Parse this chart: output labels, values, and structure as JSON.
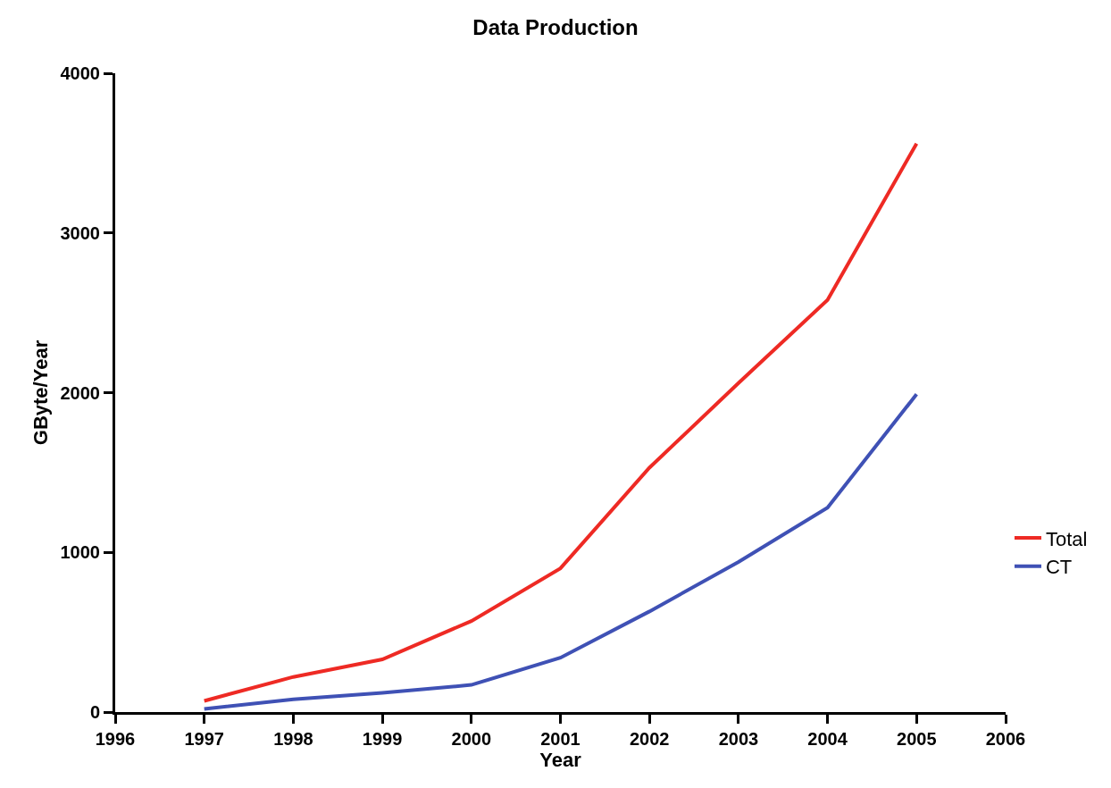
{
  "chart_data": {
    "type": "line",
    "title": "Data Production",
    "xlabel": "Year",
    "ylabel": "GByte/Year",
    "x": [
      1997,
      1998,
      1999,
      2000,
      2001,
      2002,
      2003,
      2004,
      2005
    ],
    "series": [
      {
        "name": "Total",
        "color": "#ee2a24",
        "values": [
          70,
          220,
          330,
          570,
          900,
          1530,
          2060,
          2580,
          3560
        ]
      },
      {
        "name": "CT",
        "color": "#3f51b5",
        "values": [
          20,
          80,
          120,
          170,
          340,
          630,
          940,
          1280,
          1990
        ]
      }
    ],
    "xlim": [
      1996,
      2006
    ],
    "xticks": [
      1996,
      1997,
      1998,
      1999,
      2000,
      2001,
      2002,
      2003,
      2004,
      2005,
      2006
    ],
    "ylim": [
      0,
      4000
    ],
    "yticks": [
      0,
      1000,
      2000,
      3000,
      4000
    ],
    "legend": "right",
    "marker": "none",
    "line_style": "solid"
  }
}
